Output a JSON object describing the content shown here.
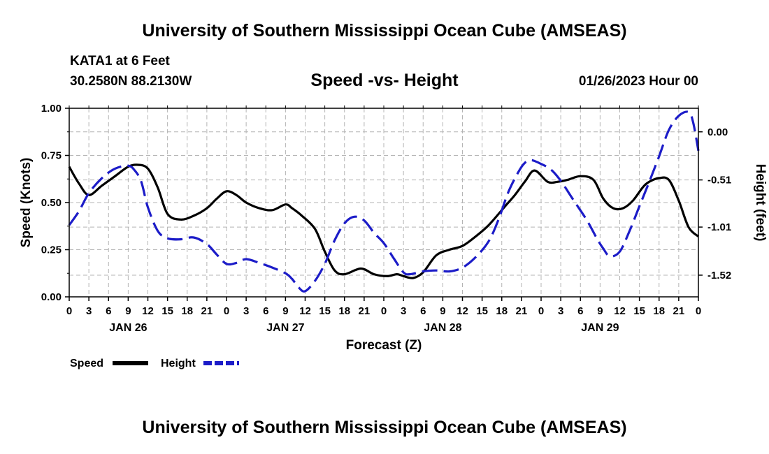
{
  "header": {
    "title_top": "University of Southern Mississippi Ocean Cube (AMSEAS)",
    "station": "KATA1 at 6 Feet",
    "coords": "30.2580N  88.2130W",
    "subtitle": "Speed -vs- Height",
    "datestamp": "01/26/2023 Hour 00",
    "title_bottom": "University of Southern Mississippi Ocean Cube (AMSEAS)"
  },
  "colors": {
    "speed": "#000000",
    "height": "#1c1cc8",
    "grid": "#b4b4b4"
  },
  "chart_data": {
    "type": "line",
    "title": "Speed -vs- Height",
    "xlabel": "Forecast (Z)",
    "ylabel_left": "Speed (Knots)",
    "ylabel_right": "Height (feet)",
    "x_unit": "hours from 01/26/2023 00Z",
    "xlim": [
      0,
      96
    ],
    "ylim_left": [
      0,
      1.0
    ],
    "ylim_right": [
      -1.75,
      0.25
    ],
    "x_tick_labels": [
      "0",
      "3",
      "6",
      "9",
      "12",
      "15",
      "18",
      "21",
      "0",
      "3",
      "6",
      "9",
      "12",
      "15",
      "18",
      "21",
      "0",
      "3",
      "6",
      "9",
      "12",
      "15",
      "18",
      "21",
      "0",
      "3",
      "6",
      "9",
      "12",
      "15",
      "18",
      "21",
      "0"
    ],
    "date_labels": [
      {
        "hour": 9,
        "label": "JAN 26"
      },
      {
        "hour": 33,
        "label": "JAN 27"
      },
      {
        "hour": 57,
        "label": "JAN 28"
      },
      {
        "hour": 81,
        "label": "JAN 29"
      }
    ],
    "left_ticks": [
      {
        "value": 0.0,
        "label": "0.00"
      },
      {
        "value": 0.25,
        "label": "0.25"
      },
      {
        "value": 0.5,
        "label": "0.50"
      },
      {
        "value": 0.75,
        "label": "0.75"
      },
      {
        "value": 1.0,
        "label": "1.00"
      }
    ],
    "right_ticks": [
      {
        "value": 0.0,
        "label": "0.00"
      },
      {
        "value": -0.51,
        "label": "-0.51"
      },
      {
        "value": -1.01,
        "label": "-1.01"
      },
      {
        "value": -1.52,
        "label": "-1.52"
      }
    ],
    "legend": [
      {
        "name": "Speed",
        "style": "solid"
      },
      {
        "name": "Height",
        "style": "dashed"
      }
    ],
    "series": [
      {
        "name": "Speed",
        "axis": "left",
        "style": "solid",
        "x": [
          0,
          1.5,
          3,
          5,
          7,
          9,
          10.5,
          12,
          13.5,
          15,
          17,
          19,
          21,
          22.5,
          24,
          25.5,
          27,
          29,
          31,
          33,
          34,
          35.5,
          37.5,
          39,
          40.5,
          42,
          44.5,
          46.5,
          48.5,
          50,
          51,
          52.5,
          54,
          56,
          58,
          60,
          62,
          64,
          66.5,
          68,
          69.5,
          71,
          73,
          74.5,
          76,
          78,
          80,
          81.5,
          83,
          84.5,
          86,
          87.5,
          88.5,
          90,
          91.5,
          93,
          94.5,
          96
        ],
        "y": [
          0.69,
          0.6,
          0.54,
          0.59,
          0.64,
          0.69,
          0.7,
          0.68,
          0.58,
          0.44,
          0.41,
          0.43,
          0.47,
          0.52,
          0.56,
          0.54,
          0.5,
          0.47,
          0.46,
          0.49,
          0.47,
          0.43,
          0.36,
          0.24,
          0.14,
          0.12,
          0.15,
          0.12,
          0.11,
          0.12,
          0.11,
          0.1,
          0.13,
          0.22,
          0.25,
          0.27,
          0.32,
          0.38,
          0.48,
          0.54,
          0.61,
          0.67,
          0.61,
          0.61,
          0.62,
          0.64,
          0.62,
          0.52,
          0.47,
          0.47,
          0.51,
          0.58,
          0.61,
          0.63,
          0.62,
          0.51,
          0.37,
          0.32
        ]
      },
      {
        "name": "Height",
        "axis": "right",
        "style": "dashed",
        "x": [
          0,
          1.5,
          3,
          5,
          7,
          9,
          10,
          11,
          12,
          13.5,
          15,
          17,
          19,
          21,
          22.5,
          24,
          25.5,
          27,
          29,
          31,
          33,
          34,
          35,
          36,
          37.5,
          39,
          40.5,
          42,
          43.5,
          45,
          46.5,
          48,
          49.5,
          51,
          52,
          54,
          56,
          58,
          60,
          62,
          64,
          65.5,
          67,
          68.5,
          69.5,
          70.5,
          72,
          73.5,
          75,
          77,
          79,
          80.5,
          81.5,
          82.5,
          84,
          85.5,
          87,
          88.5,
          90,
          91.5,
          93,
          94.5,
          95.2,
          96
        ],
        "y": [
          -0.99,
          -0.84,
          -0.65,
          -0.49,
          -0.39,
          -0.36,
          -0.41,
          -0.53,
          -0.8,
          -1.05,
          -1.13,
          -1.14,
          -1.12,
          -1.19,
          -1.3,
          -1.4,
          -1.39,
          -1.35,
          -1.39,
          -1.44,
          -1.5,
          -1.56,
          -1.65,
          -1.69,
          -1.58,
          -1.4,
          -1.15,
          -0.97,
          -0.9,
          -0.94,
          -1.07,
          -1.18,
          -1.34,
          -1.49,
          -1.51,
          -1.48,
          -1.47,
          -1.48,
          -1.44,
          -1.33,
          -1.16,
          -0.93,
          -0.64,
          -0.43,
          -0.33,
          -0.3,
          -0.34,
          -0.4,
          -0.52,
          -0.73,
          -0.94,
          -1.13,
          -1.24,
          -1.32,
          -1.27,
          -1.05,
          -0.79,
          -0.53,
          -0.26,
          0.02,
          0.17,
          0.21,
          0.1,
          -0.2
        ]
      }
    ]
  }
}
